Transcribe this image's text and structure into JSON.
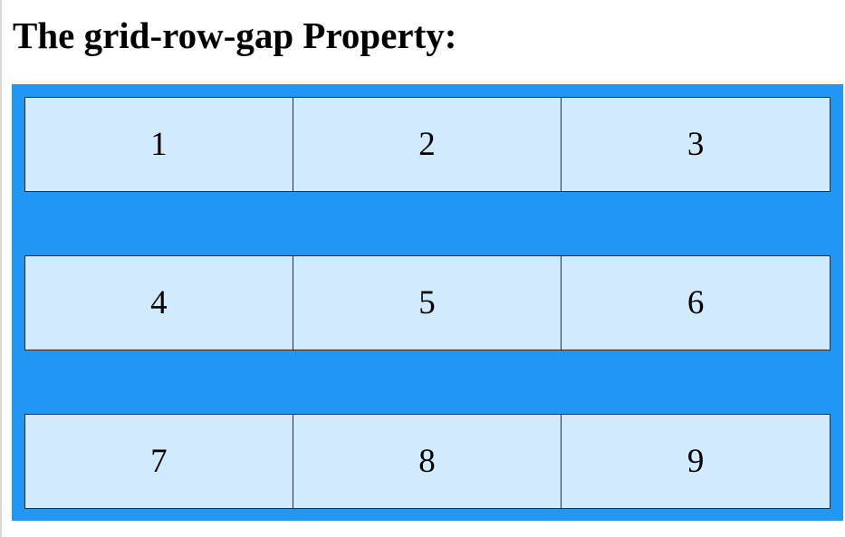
{
  "page": {
    "heading": "The grid-row-gap Property:"
  },
  "grid": {
    "background_color": "#2196f3",
    "item_background": "rgba(255,255,255,0.8)",
    "items": [
      "1",
      "2",
      "3",
      "4",
      "5",
      "6",
      "7",
      "8",
      "9"
    ]
  }
}
